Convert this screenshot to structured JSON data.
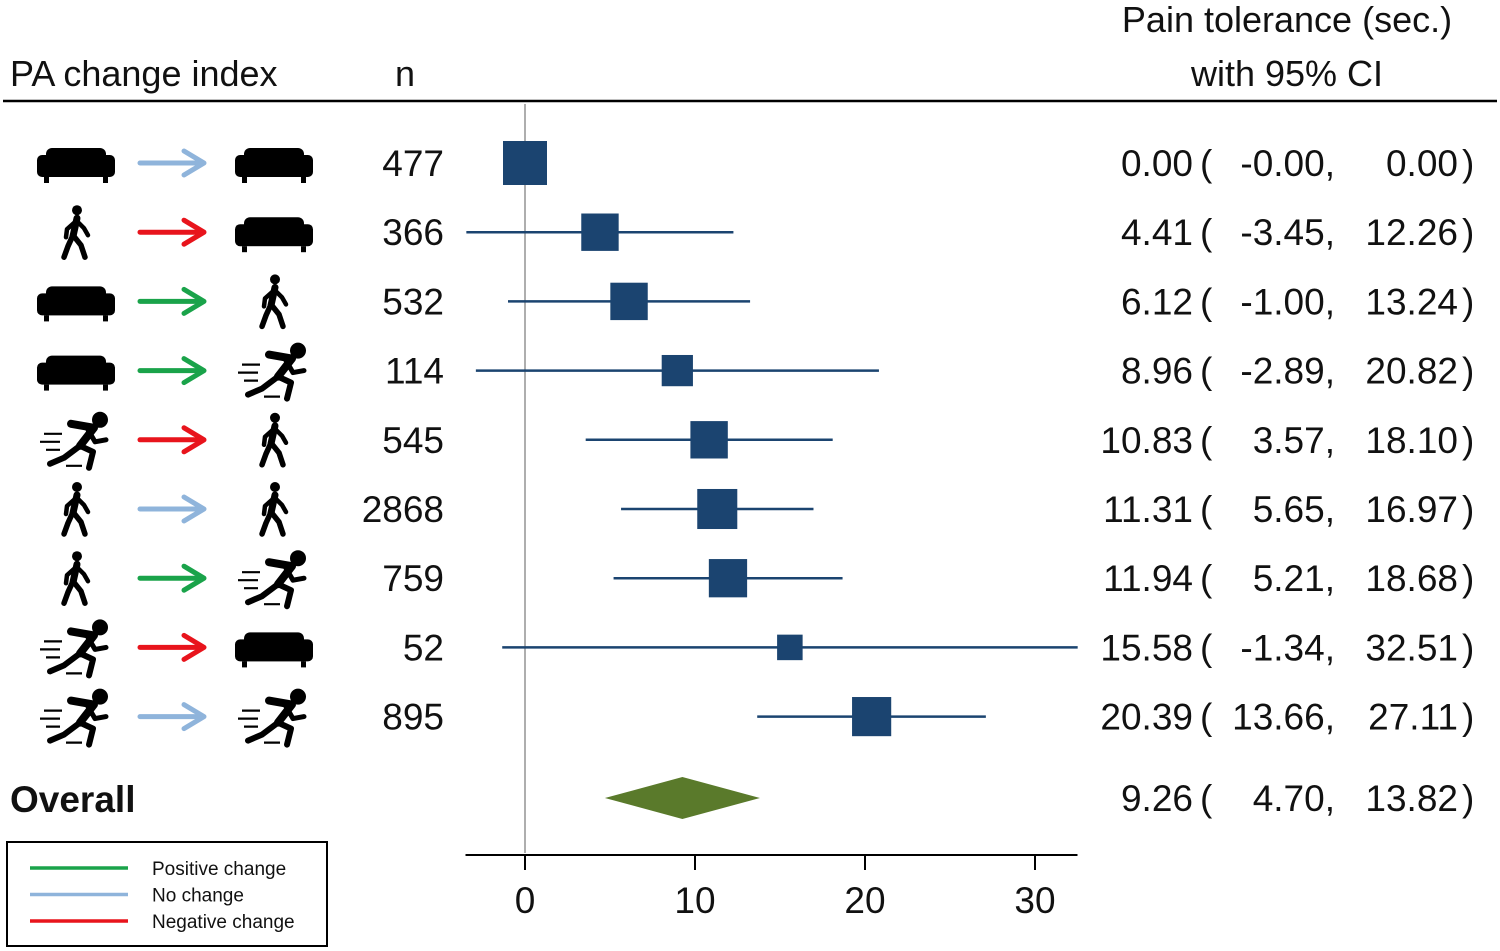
{
  "colors": {
    "marker": "#1b4470",
    "diamond": "#5a7a2b",
    "positive": "#1aa34a",
    "none": "#8fb4db",
    "negative": "#e8141c",
    "zero_line": "#999999"
  },
  "icon_legend": {
    "sedentary": "sofa-icon",
    "light": "walking-person-icon",
    "vigorous": "running-person-icon"
  },
  "header": {
    "col_index": "PA change index",
    "col_n": "n",
    "col_effect_line1": "Pain tolerance (sec.)",
    "col_effect_line2": "with 95% CI"
  },
  "legend": {
    "items": [
      {
        "label": "Positive change",
        "kind": "positive"
      },
      {
        "label": "No change",
        "kind": "none"
      },
      {
        "label": "Negative change",
        "kind": "negative"
      }
    ]
  },
  "chart_data": {
    "type": "forest",
    "xlim": [
      -3.5,
      32.5
    ],
    "xticks": [
      "0",
      "10",
      "20",
      "30"
    ],
    "rows": [
      {
        "from": "sofa",
        "to": "sofa",
        "change": "none",
        "n": "477",
        "est": 0.0,
        "lo": -0.0,
        "hi": 0.0,
        "weight": 1.0,
        "est_text": "0.00",
        "lo_text": "-0.00",
        "hi_text": "0.00"
      },
      {
        "from": "walk",
        "to": "sofa",
        "change": "negative",
        "n": "366",
        "est": 4.41,
        "lo": -3.45,
        "hi": 12.26,
        "weight": 0.85,
        "est_text": "4.41",
        "lo_text": "-3.45",
        "hi_text": "12.26"
      },
      {
        "from": "sofa",
        "to": "walk",
        "change": "positive",
        "n": "532",
        "est": 6.12,
        "lo": -1.0,
        "hi": 13.24,
        "weight": 0.85,
        "est_text": "6.12",
        "lo_text": "-1.00",
        "hi_text": "13.24"
      },
      {
        "from": "sofa",
        "to": "run",
        "change": "positive",
        "n": "114",
        "est": 8.96,
        "lo": -2.89,
        "hi": 20.82,
        "weight": 0.71,
        "est_text": "8.96",
        "lo_text": "-2.89",
        "hi_text": "20.82"
      },
      {
        "from": "run",
        "to": "walk",
        "change": "negative",
        "n": "545",
        "est": 10.83,
        "lo": 3.57,
        "hi": 18.1,
        "weight": 0.85,
        "est_text": "10.83",
        "lo_text": "3.57",
        "hi_text": "18.10"
      },
      {
        "from": "walk",
        "to": "walk",
        "change": "none",
        "n": "2868",
        "est": 11.31,
        "lo": 5.65,
        "hi": 16.97,
        "weight": 0.91,
        "est_text": "11.31",
        "lo_text": "5.65",
        "hi_text": "16.97"
      },
      {
        "from": "walk",
        "to": "run",
        "change": "positive",
        "n": "759",
        "est": 11.94,
        "lo": 5.21,
        "hi": 18.68,
        "weight": 0.87,
        "est_text": "11.94",
        "lo_text": "5.21",
        "hi_text": "18.68"
      },
      {
        "from": "run",
        "to": "sofa",
        "change": "negative",
        "n": "52",
        "est": 15.58,
        "lo": -1.34,
        "hi": 32.51,
        "weight": 0.58,
        "est_text": "15.58",
        "lo_text": "-1.34",
        "hi_text": "32.51"
      },
      {
        "from": "run",
        "to": "run",
        "change": "none",
        "n": "895",
        "est": 20.39,
        "lo": 13.66,
        "hi": 27.11,
        "weight": 0.89,
        "est_text": "20.39",
        "lo_text": "13.66",
        "hi_text": "27.11"
      }
    ],
    "overall": {
      "label": "Overall",
      "est": 9.26,
      "lo": 4.7,
      "hi": 13.82,
      "est_text": "9.26",
      "lo_text": "4.70",
      "hi_text": "13.82"
    }
  }
}
